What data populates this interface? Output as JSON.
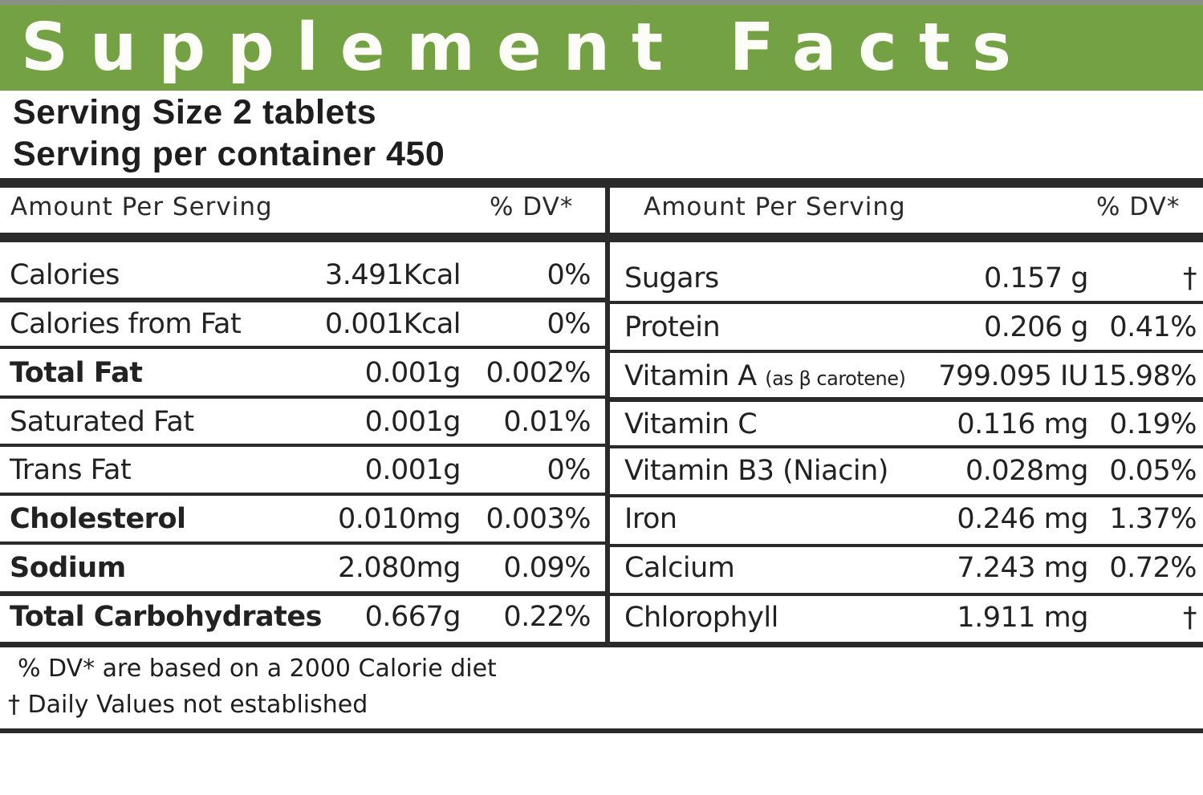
{
  "header": {
    "title": "Supplement Facts",
    "brand_color": "#74a143",
    "serving_size": "Serving Size 2 tablets",
    "servings_per_container": "Serving per container 450"
  },
  "columns": {
    "left": {
      "amount_label": "Amount Per Serving",
      "dv_label": "% DV*"
    },
    "right": {
      "amount_label": "Amount Per Serving",
      "dv_label": "% DV*"
    }
  },
  "left_rows": [
    {
      "name": "Calories",
      "amount": "3.491Kcal",
      "dv": "0%",
      "bold": false
    },
    {
      "name": "Calories from Fat",
      "amount": "0.001Kcal",
      "dv": "0%",
      "bold": false
    },
    {
      "name": "Total Fat",
      "amount": "0.001g",
      "dv": "0.002%",
      "bold": true
    },
    {
      "name": "Saturated Fat",
      "amount": "0.001g",
      "dv": "0.01%",
      "bold": false
    },
    {
      "name": "Trans Fat",
      "amount": "0.001g",
      "dv": "0%",
      "bold": false
    },
    {
      "name": "Cholesterol",
      "amount": "0.010mg",
      "dv": "0.003%",
      "bold": true
    },
    {
      "name": "Sodium",
      "amount": "2.080mg",
      "dv": "0.09%",
      "bold": true
    },
    {
      "name": "Total Carbohydrates",
      "amount": "0.667g",
      "dv": "0.22%",
      "bold": true
    }
  ],
  "right_rows": [
    {
      "name": "Sugars",
      "qualifier": "",
      "amount": "0.157 g",
      "dv": "†"
    },
    {
      "name": "Protein",
      "qualifier": "",
      "amount": "0.206 g",
      "dv": "0.41%"
    },
    {
      "name": "Vitamin A",
      "qualifier": "(as β carotene)",
      "amount": "799.095 IU",
      "dv": "15.98%"
    },
    {
      "name": "Vitamin C",
      "qualifier": "",
      "amount": "0.116 mg",
      "dv": "0.19%"
    },
    {
      "name": "Vitamin B3 (Niacin)",
      "qualifier": "",
      "amount": "0.028mg",
      "dv": "0.05%"
    },
    {
      "name": "Iron",
      "qualifier": "",
      "amount": "0.246 mg",
      "dv": "1.37%"
    },
    {
      "name": "Calcium",
      "qualifier": "",
      "amount": "7.243 mg",
      "dv": "0.72%"
    },
    {
      "name": "Chlorophyll",
      "qualifier": "",
      "amount": "1.911 mg",
      "dv": "†"
    }
  ],
  "footnotes": {
    "dv_basis": "% DV* are based on a 2000 Calorie diet",
    "not_established": "† Daily Values not established"
  }
}
